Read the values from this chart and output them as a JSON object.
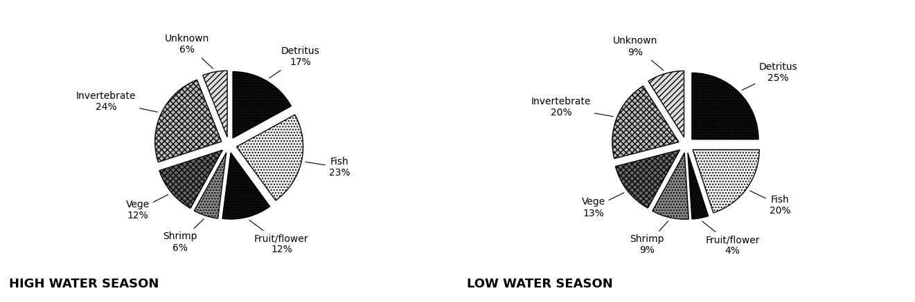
{
  "high_water": {
    "title": "HIGH WATER SEASON",
    "labels": [
      "Detritus",
      "Fish",
      "Fruit/flower",
      "Shrimp",
      "Vege",
      "Invertebrate",
      "Unknown"
    ],
    "values": [
      17,
      23,
      12,
      6,
      12,
      24,
      6
    ],
    "start_angle": 90
  },
  "low_water": {
    "title": "LOW WATER SEASON",
    "labels": [
      "Detritus",
      "Fish",
      "Fruit/flower",
      "Shrimp",
      "Vege",
      "Invertebrate",
      "Unknown"
    ],
    "values": [
      25,
      20,
      4,
      9,
      13,
      20,
      9
    ],
    "start_angle": 90
  },
  "category_styles": {
    "Detritus": {
      "facecolor": "#111111",
      "hatch": "oooo"
    },
    "Fish": {
      "facecolor": "#f0f0f0",
      "hatch": "...."
    },
    "Fruit/flower": {
      "facecolor": "#111111",
      "hatch": "oooo"
    },
    "Shrimp": {
      "facecolor": "#888888",
      "hatch": "...."
    },
    "Vege": {
      "facecolor": "#666666",
      "hatch": "xxxx"
    },
    "Invertebrate": {
      "facecolor": "#bbbbbb",
      "hatch": "xxxx"
    },
    "Unknown": {
      "facecolor": "#dddddd",
      "hatch": "////"
    }
  },
  "edgecolor": "#000000",
  "explode": 0.12,
  "label_fontsize": 10,
  "title_fontsize": 13,
  "background_color": "#ffffff"
}
